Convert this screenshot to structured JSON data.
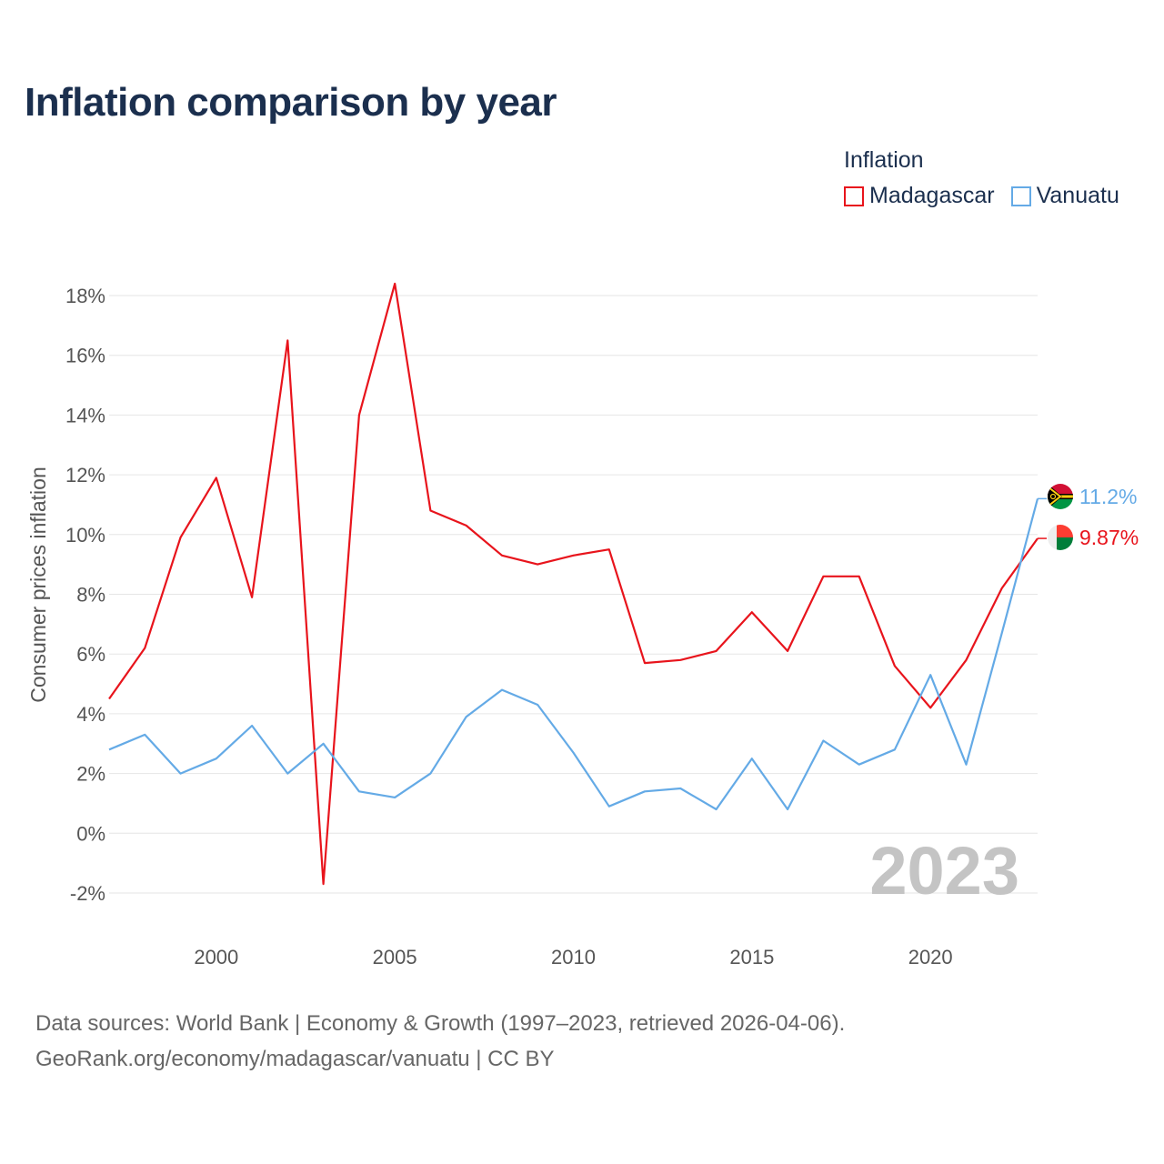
{
  "title": "Inflation comparison by year",
  "legend": {
    "title": "Inflation",
    "items": [
      {
        "label": "Madagascar",
        "color": "#e8141c"
      },
      {
        "label": "Vanuatu",
        "color": "#64aae6"
      }
    ]
  },
  "footer": {
    "line1": "Data sources: World Bank | Economy & Growth (1997–2023, retrieved 2026-04-06).",
    "line2": "GeoRank.org/economy/madagascar/vanuatu | CC BY"
  },
  "chart_data": {
    "type": "line",
    "title": "Inflation comparison by year",
    "xlabel": "",
    "ylabel": "Consumer prices inflation",
    "xlim": [
      1997,
      2023
    ],
    "ylim": [
      -2,
      18
    ],
    "x_ticks": [
      2000,
      2005,
      2010,
      2015,
      2020
    ],
    "y_ticks": [
      -2,
      0,
      2,
      4,
      6,
      8,
      10,
      12,
      14,
      16,
      18
    ],
    "y_tick_labels": [
      "-2%",
      "0%",
      "2%",
      "4%",
      "6%",
      "8%",
      "10%",
      "12%",
      "14%",
      "16%",
      "18%"
    ],
    "grid": true,
    "year_label": "2023",
    "x": [
      1997,
      1998,
      1999,
      2000,
      2001,
      2002,
      2003,
      2004,
      2005,
      2006,
      2007,
      2008,
      2009,
      2010,
      2011,
      2012,
      2013,
      2014,
      2015,
      2016,
      2017,
      2018,
      2019,
      2020,
      2021,
      2022,
      2023
    ],
    "series": [
      {
        "name": "Madagascar",
        "color": "#e8141c",
        "end_label": "9.87%",
        "values": [
          4.5,
          6.2,
          9.9,
          11.9,
          7.9,
          16.5,
          -1.7,
          14.0,
          18.4,
          10.8,
          10.3,
          9.3,
          9.0,
          9.3,
          9.5,
          5.7,
          5.8,
          6.1,
          7.4,
          6.1,
          8.6,
          8.6,
          5.6,
          4.2,
          5.8,
          8.2,
          9.87
        ]
      },
      {
        "name": "Vanuatu",
        "color": "#64aae6",
        "end_label": "11.2%",
        "values": [
          2.8,
          3.3,
          2.0,
          2.5,
          3.6,
          2.0,
          3.0,
          1.4,
          1.2,
          2.0,
          3.9,
          4.8,
          4.3,
          2.7,
          0.9,
          1.4,
          1.5,
          0.8,
          2.5,
          0.8,
          3.1,
          2.3,
          2.8,
          5.3,
          2.3,
          6.7,
          11.2
        ]
      }
    ]
  }
}
